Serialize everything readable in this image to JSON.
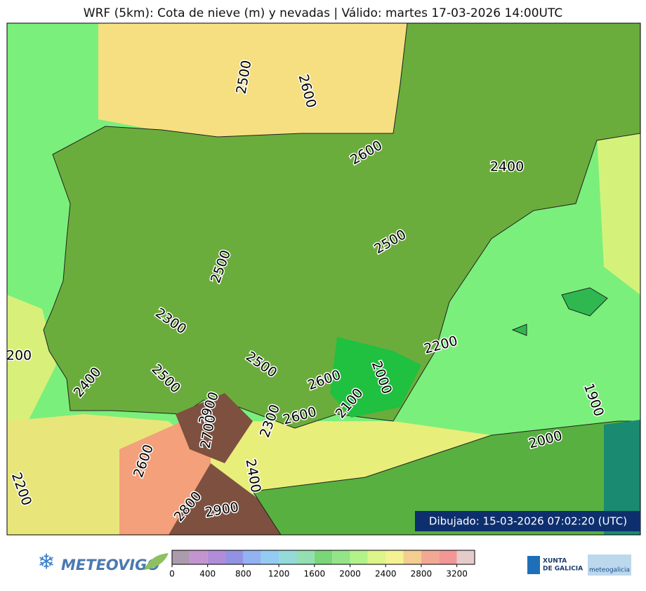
{
  "title": "WRF (5km): Cota de nieve (m) y nevadas | Válido: martes 17-03-2026 14:00UTC",
  "contour_labels": [
    2500,
    2600,
    2600,
    2400,
    2500,
    2500,
    2300,
    200,
    2500,
    2200,
    2000,
    2400,
    2500,
    2600,
    2100,
    1900,
    2900,
    2700,
    2300,
    2600,
    2000,
    2600,
    2400,
    2200,
    2800,
    2900
  ],
  "timestamp": "Dibujado: 15-03-2026 07:02:20 (UTC)",
  "colorbar": {
    "lim": [
      0,
      3400
    ],
    "bounds": [
      0,
      200,
      400,
      600,
      800,
      1000,
      1200,
      1400,
      1600,
      1800,
      2000,
      2200,
      2400,
      2600,
      2800,
      3000,
      3200,
      3400
    ],
    "colors": [
      "#9e8a9e",
      "#b882c8",
      "#a278d2",
      "#7f7fe0",
      "#80a4f0",
      "#80c2f0",
      "#80d4d2",
      "#80d8a4",
      "#62d062",
      "#80e072",
      "#a6f074",
      "#d6f274",
      "#f2f080",
      "#f2c47e",
      "#f09a80",
      "#f08484",
      "#e2c2c2"
    ],
    "ticks": [
      0,
      400,
      800,
      1200,
      1600,
      2000,
      2400,
      2800,
      3200
    ]
  },
  "logos": {
    "meteovigo": "METEOVIGO",
    "xunta": "XUNTA",
    "xunta_sub": "DE GALICIA",
    "meteogalicia": "meteogalicia"
  }
}
